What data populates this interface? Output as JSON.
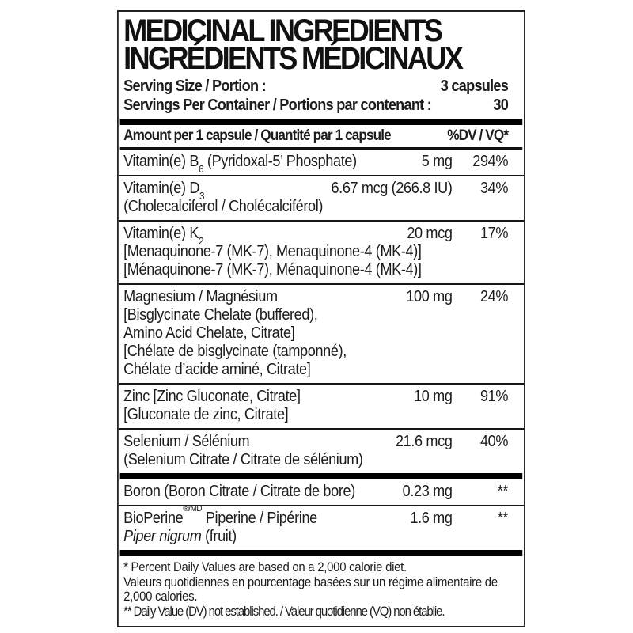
{
  "panel": {
    "title_en": "MEDICINAL INGREDIENTS",
    "title_fr": "INGRÉDIENTS MÉDICINAUX",
    "serving": {
      "size_label": "Serving Size / Portion :",
      "size_value": "3 capsules",
      "container_label": "Servings Per Container / Portions par contenant :",
      "container_value": "30"
    },
    "columns": {
      "amount_header": "Amount per 1 capsule / Quantité par 1 capsule",
      "dv_header": "%DV / VQ*"
    },
    "rows": [
      {
        "pre": "Vitamin(e) B",
        "sub": "6",
        "post": " (Pyridoxal-5’ Phosphate)",
        "amount": "5 mg",
        "dv": "294%",
        "sublines": []
      },
      {
        "pre": "Vitamin(e) D",
        "sub": "3",
        "post": "",
        "amount": "6.67 mcg (266.8 IU)",
        "dv": "34%",
        "sublines": [
          "(Cholecalciferol / Cholécalciférol)"
        ]
      },
      {
        "pre": "Vitamin(e) K",
        "sub": "2",
        "post": "",
        "amount": "20 mcg",
        "dv": "17%",
        "sublines": [
          "[Menaquinone-7 (MK-7), Menaquinone-4 (MK-4)]",
          "[Ménaquinone-7 (MK-7), Ménaquinone-4 (MK-4)]"
        ]
      },
      {
        "pre": "Magnesium / Magnésium",
        "sub": "",
        "post": "",
        "amount": "100 mg",
        "dv": "24%",
        "sublines": [
          "[Bisglycinate Chelate (buffered),",
          "Amino Acid Chelate, Citrate]",
          "[Chélate de bisglycinate (tamponné),",
          "Chélate d’acide aminé, Citrate]"
        ]
      },
      {
        "pre": "Zinc [Zinc Gluconate, Citrate]",
        "sub": "",
        "post": "",
        "amount": "10 mg",
        "dv": "91%",
        "sublines": [
          "[Gluconate de zinc, Citrate]"
        ]
      },
      {
        "pre": "Selenium / Sélénium",
        "sub": "",
        "post": "",
        "amount": "21.6 mcg",
        "dv": "40%",
        "sublines": [
          "(Selenium Citrate / Citrate de sélénium)"
        ]
      },
      {
        "pre": "Boron (Boron Citrate / Citrate de bore)",
        "sub": "",
        "post": "",
        "amount": "0.23 mg",
        "dv": "**",
        "sublines": []
      },
      {
        "pre": "BioPerine",
        "sup": "®/MD",
        "post": " Piperine / Pipérine",
        "amount": "1.6 mg",
        "dv": "**",
        "subline_italic": "Piper nigrum",
        "subline_rest": " (fruit)"
      }
    ],
    "footnotes": {
      "dv_en": "* Percent Daily Values are based on a 2,000 calorie diet.",
      "dv_fr": "Valeurs quotidiennes en pourcentage basées sur un régime alimentaire de 2,000 calories.",
      "not_established": "** Daily Value (DV) not established. / Valeur quotidienne (VQ) non établie."
    }
  },
  "colors": {
    "text": "#1c1c1c",
    "bar": "#000000",
    "border": "#222222"
  }
}
